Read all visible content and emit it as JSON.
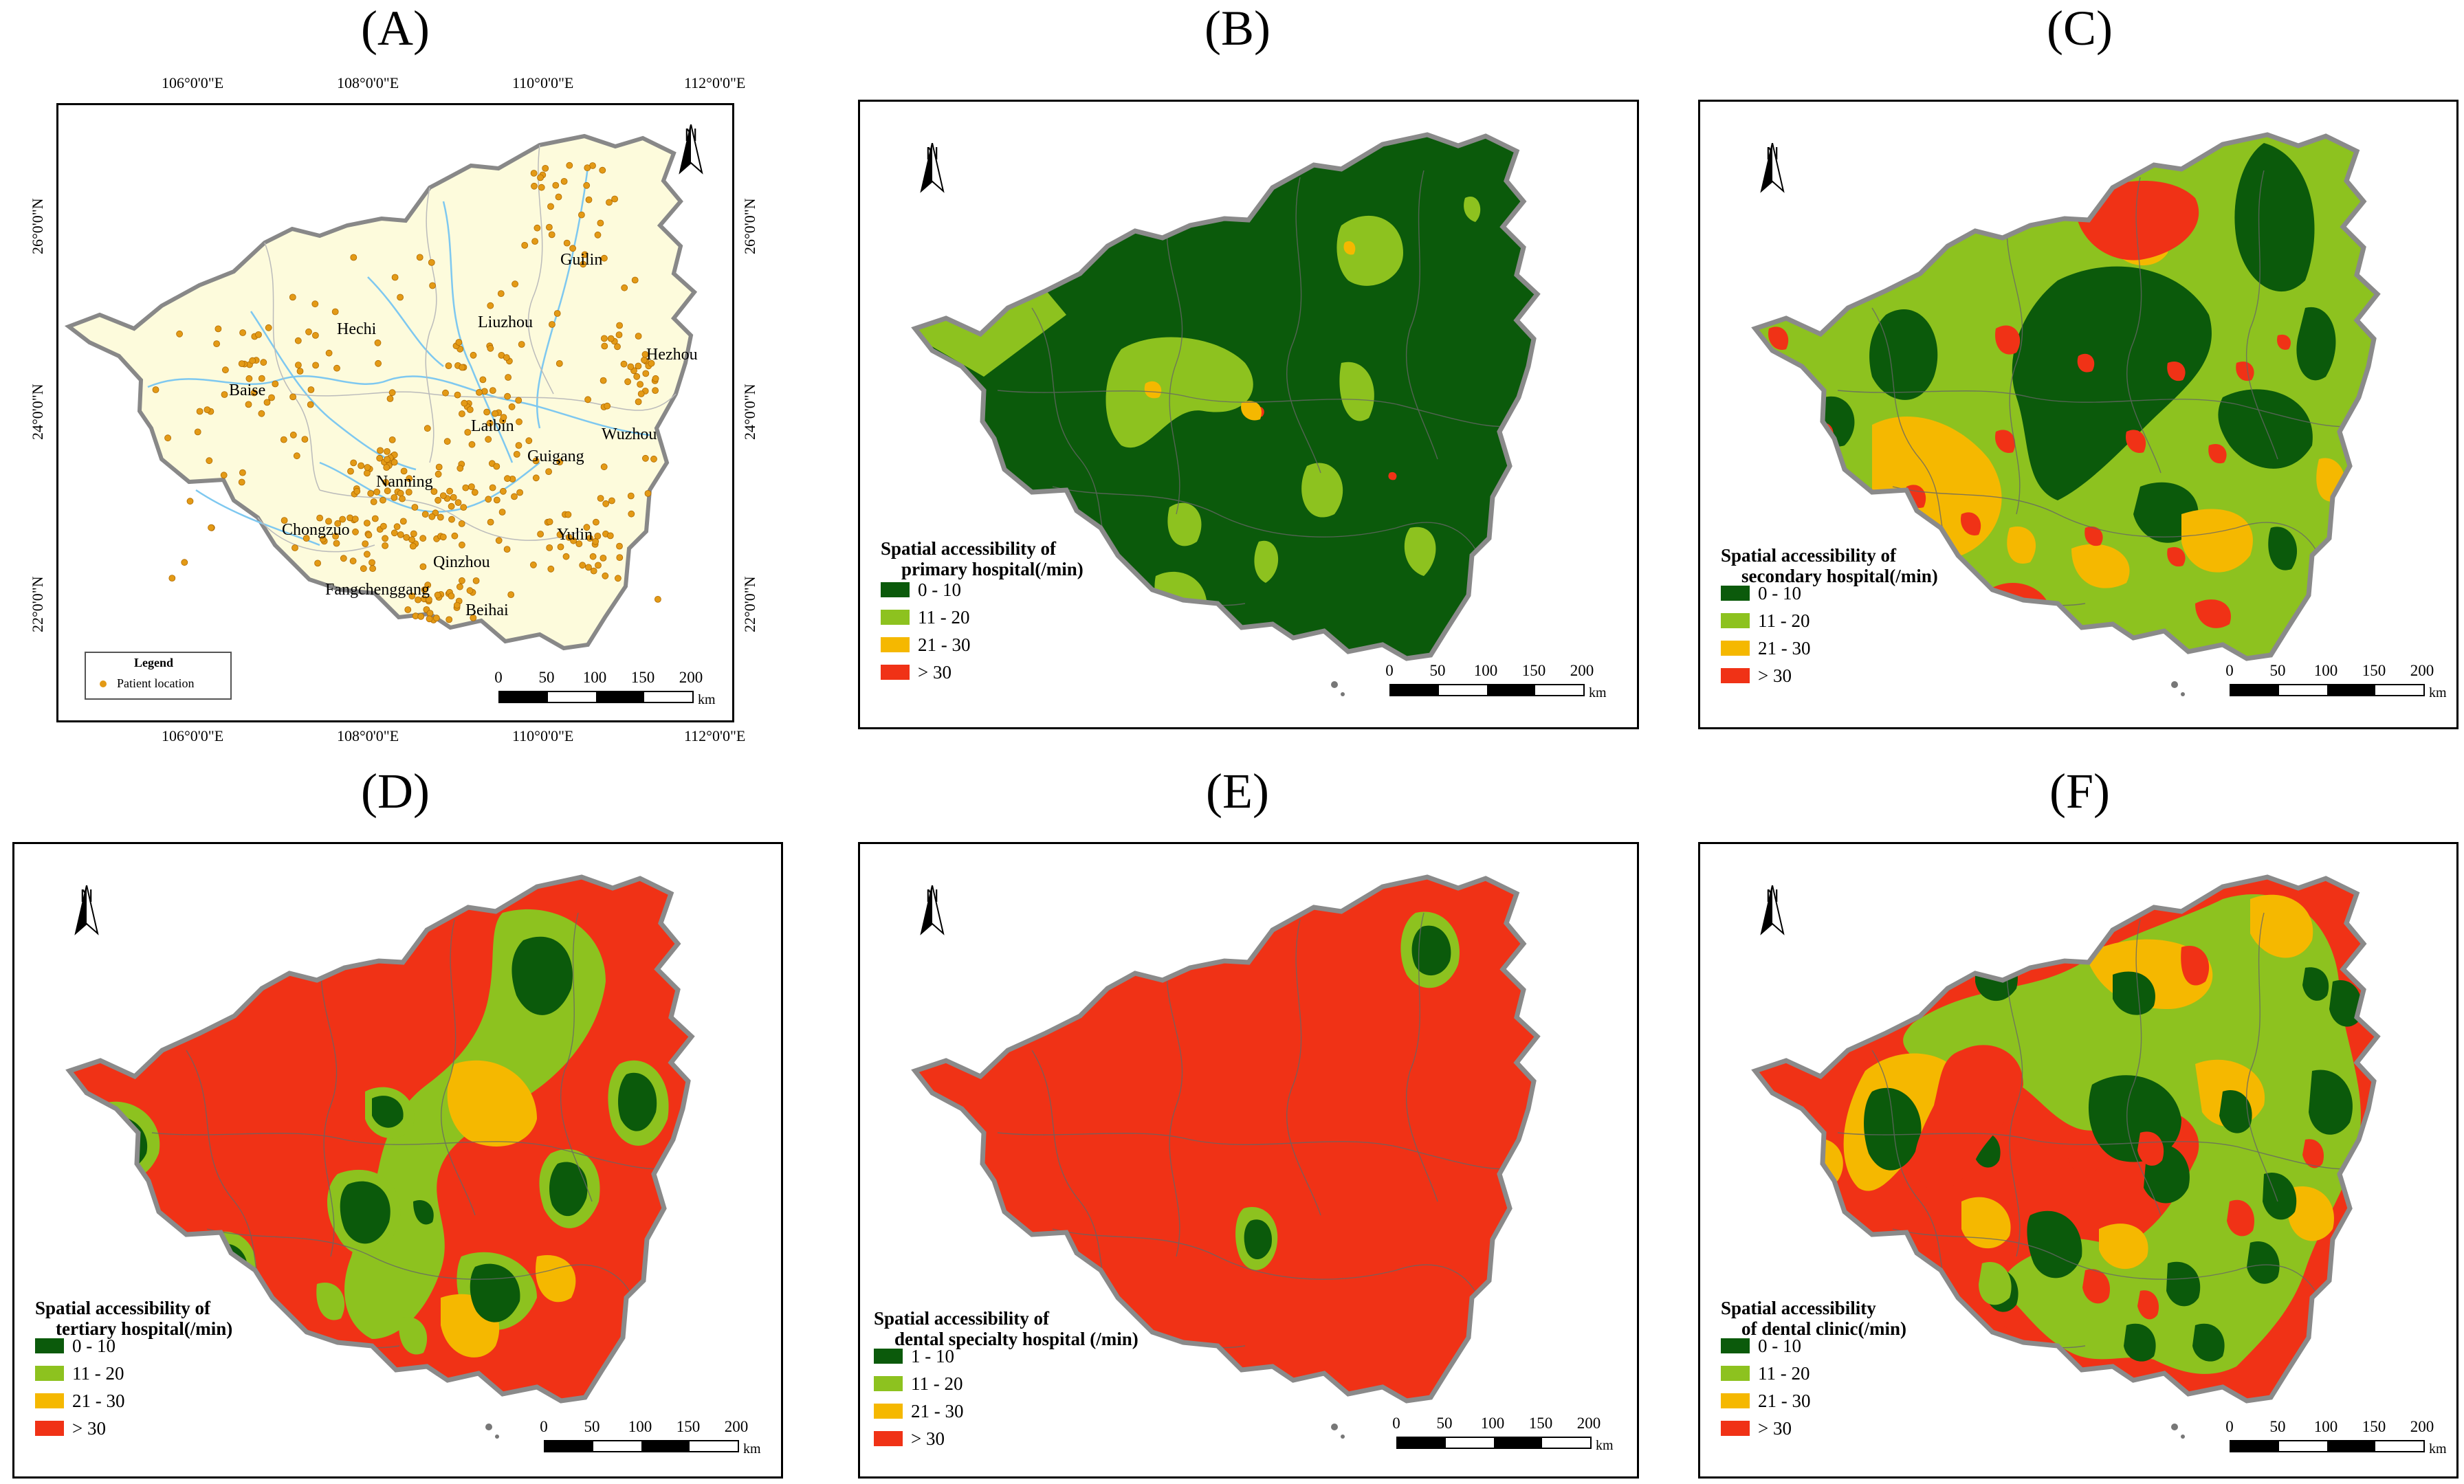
{
  "panels": [
    {
      "id": "A",
      "label": "(A)"
    },
    {
      "id": "B",
      "label": "(B)",
      "legend_title": [
        "Spatial accessibility of",
        "primary hospital(/min)"
      ],
      "classes": [
        "0 - 10",
        "11 - 20",
        "21 - 30",
        "> 30"
      ]
    },
    {
      "id": "C",
      "label": "(C)",
      "legend_title": [
        "Spatial accessibility of",
        "secondary hospital(/min)"
      ],
      "classes": [
        "0 - 10",
        "11 - 20",
        "21 - 30",
        "> 30"
      ]
    },
    {
      "id": "D",
      "label": "(D)",
      "legend_title": [
        "Spatial accessibility of",
        "tertiary hospital(/min)"
      ],
      "classes": [
        "0 - 10",
        "11 - 20",
        "21 - 30",
        "> 30"
      ]
    },
    {
      "id": "E",
      "label": "(E)",
      "legend_title": [
        "Spatial accessibility of",
        "dental specialty hospital (/min)"
      ],
      "classes": [
        "1 - 10",
        "11 - 20",
        "21 - 30",
        "> 30"
      ]
    },
    {
      "id": "F",
      "label": "(F)",
      "legend_title": [
        "Spatial accessibility",
        "of dental clinic(/min)"
      ],
      "classes": [
        "0 - 10",
        "11 - 20",
        "21 - 30",
        "> 30"
      ]
    }
  ],
  "colors": {
    "c1": "#0b5a0b",
    "c2": "#8dc21f",
    "c3": "#f5b800",
    "c4": "#f03216",
    "base": "#fdfbdc",
    "point": "#e39a16",
    "river": "#7ec8f0"
  },
  "mapA": {
    "legend_title": "Legend",
    "legend_item": "Patient location",
    "lon_labels": [
      "106°0'0\"E",
      "108°0'0\"E",
      "110°0'0\"E",
      "112°0'0\"E"
    ],
    "lat_labels": [
      "26°0'0\"N",
      "24°0'0\"N",
      "22°0'0\"N"
    ],
    "cities": [
      "Guilin",
      "Hechi",
      "Liuzhou",
      "Hezhou",
      "Baise",
      "Laibin",
      "Wuzhou",
      "Guigang",
      "Nanning",
      "Chongzuo",
      "Yulin",
      "Qinzhou",
      "Fangchenggang",
      "Beihai"
    ]
  },
  "north_label": "N",
  "scale": {
    "ticks": [
      "0",
      "50",
      "100",
      "150",
      "200"
    ],
    "unit": "km"
  }
}
